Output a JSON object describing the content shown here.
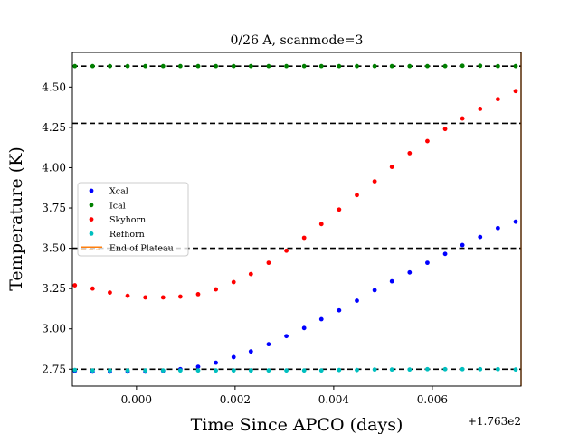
{
  "chart_data": {
    "type": "scatter",
    "title": "0/26 A, scanmode=3",
    "xlabel": "Time Since APCO (days)",
    "ylabel": "Temperature (K)",
    "x_offset_label": "+1.763e2",
    "xlim": [
      -0.0013,
      0.0078
    ],
    "ylim": [
      2.645,
      4.715
    ],
    "x_ticks": [
      0.0,
      0.002,
      0.004,
      0.006
    ],
    "x_tick_labels": [
      "0.000",
      "0.002",
      "0.004",
      "0.006"
    ],
    "y_ticks": [
      2.75,
      3.0,
      3.25,
      3.5,
      3.75,
      4.0,
      4.25,
      4.5
    ],
    "y_tick_labels": [
      "2.75",
      "3.00",
      "3.25",
      "3.50",
      "3.75",
      "4.00",
      "4.25",
      "4.50"
    ],
    "grid": false,
    "legend_position": "center-left",
    "x": [
      -0.00125,
      -0.00089,
      -0.00054,
      -0.00018,
      0.00018,
      0.00054,
      0.00089,
      0.00125,
      0.00161,
      0.00197,
      0.00232,
      0.00268,
      0.00304,
      0.0034,
      0.00375,
      0.00411,
      0.00447,
      0.00483,
      0.00518,
      0.00554,
      0.0059,
      0.00626,
      0.00661,
      0.00697,
      0.00733,
      0.00769
    ],
    "series": [
      {
        "name": "Xcal",
        "color": "#0000ff",
        "values": [
          2.74,
          2.735,
          2.735,
          2.735,
          2.735,
          2.74,
          2.75,
          2.765,
          2.79,
          2.825,
          2.86,
          2.905,
          2.955,
          3.005,
          3.06,
          3.115,
          3.175,
          3.24,
          3.295,
          3.35,
          3.41,
          3.465,
          3.52,
          3.57,
          3.625,
          3.665
        ]
      },
      {
        "name": "Ical",
        "color": "#008000",
        "values": [
          4.63,
          4.63,
          4.63,
          4.63,
          4.63,
          4.63,
          4.63,
          4.63,
          4.63,
          4.63,
          4.63,
          4.63,
          4.63,
          4.63,
          4.63,
          4.63,
          4.63,
          4.63,
          4.63,
          4.63,
          4.63,
          4.63,
          4.632,
          4.632,
          4.63,
          4.63
        ]
      },
      {
        "name": "Skyhorn",
        "color": "#ff0000",
        "values": [
          3.27,
          3.25,
          3.225,
          3.205,
          3.195,
          3.195,
          3.2,
          3.215,
          3.245,
          3.29,
          3.34,
          3.41,
          3.485,
          3.565,
          3.65,
          3.74,
          3.83,
          3.915,
          4.005,
          4.09,
          4.165,
          4.24,
          4.305,
          4.365,
          4.425,
          4.475
        ]
      },
      {
        "name": "Refhorn",
        "color": "#00bfbf",
        "values": [
          2.745,
          2.742,
          2.742,
          2.742,
          2.742,
          2.742,
          2.742,
          2.742,
          2.742,
          2.742,
          2.742,
          2.742,
          2.742,
          2.742,
          2.742,
          2.745,
          2.745,
          2.748,
          2.748,
          2.748,
          2.75,
          2.75,
          2.75,
          2.75,
          2.75,
          2.748
        ]
      }
    ],
    "hlines": [
      {
        "y": 4.63,
        "style": "dashed",
        "color": "#000000"
      },
      {
        "y": 4.275,
        "style": "dashed",
        "color": "#000000"
      },
      {
        "y": 3.5,
        "style": "dashed",
        "color": "#000000"
      },
      {
        "y": 2.75,
        "style": "dashed",
        "color": "#000000"
      }
    ],
    "vlines": [
      {
        "name": "End of Plateau",
        "x": 0.0078,
        "color": "#ff7f0e",
        "legend_colors": [
          "#ff7f0e",
          "#ffbf80"
        ]
      }
    ]
  }
}
